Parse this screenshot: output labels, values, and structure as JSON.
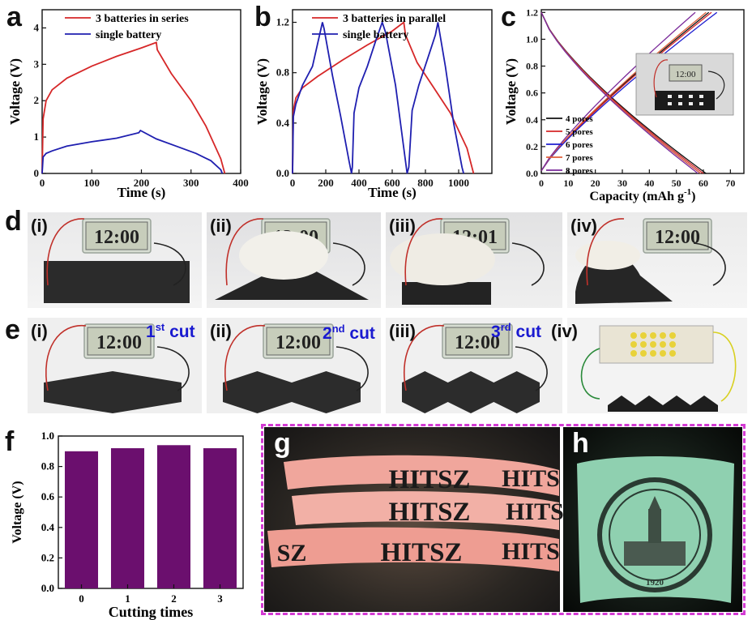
{
  "panels": {
    "a": "a",
    "b": "b",
    "c": "c",
    "d": "d",
    "e": "e",
    "f": "f",
    "g": "g",
    "h": "h"
  },
  "colors": {
    "red": "#d62728",
    "blue": "#1f1fb0",
    "bar": "#6b0f6e",
    "magenta": "#d33bd3"
  },
  "chart_data": [
    {
      "id": "a",
      "type": "line",
      "xlabel": "Time (s)",
      "ylabel": "Voltage (V)",
      "xlim": [
        0,
        400
      ],
      "ylim": [
        0,
        4.5
      ],
      "xticks": [
        0,
        100,
        200,
        300,
        400
      ],
      "yticks": [
        0,
        1,
        2,
        3,
        4
      ],
      "series": [
        {
          "name": "3 batteries in series",
          "color": "#d62728",
          "x": [
            0,
            2,
            8,
            20,
            50,
            100,
            150,
            200,
            230,
            232,
            260,
            300,
            330,
            360,
            368
          ],
          "y": [
            0,
            1.5,
            2.0,
            2.3,
            2.62,
            2.95,
            3.22,
            3.45,
            3.6,
            3.4,
            2.75,
            2.0,
            1.3,
            0.4,
            0
          ]
        },
        {
          "name": "single battery",
          "color": "#1f1fb0",
          "x": [
            0,
            2,
            8,
            20,
            50,
            100,
            150,
            195,
            198,
            230,
            270,
            310,
            340,
            360,
            363
          ],
          "y": [
            0,
            0.45,
            0.55,
            0.62,
            0.75,
            0.87,
            0.97,
            1.12,
            1.18,
            0.95,
            0.75,
            0.55,
            0.35,
            0.1,
            0
          ]
        }
      ]
    },
    {
      "id": "b",
      "type": "line",
      "xlabel": "Time (s)",
      "ylabel": "Voltage (V)",
      "xlim": [
        0,
        1200
      ],
      "ylim": [
        0,
        1.3
      ],
      "xticks": [
        0,
        200,
        400,
        600,
        800,
        1000
      ],
      "yticks": [
        0.0,
        0.4,
        0.8,
        1.2
      ],
      "series": [
        {
          "name": "3 batteries in parallel",
          "color": "#d62728",
          "x": [
            0,
            5,
            20,
            60,
            150,
            300,
            450,
            600,
            670,
            680,
            750,
            850,
            950,
            1050,
            1090
          ],
          "y": [
            0,
            0.5,
            0.6,
            0.68,
            0.77,
            0.9,
            1.02,
            1.13,
            1.2,
            1.1,
            0.88,
            0.68,
            0.48,
            0.2,
            0
          ]
        },
        {
          "name": "single battery",
          "color": "#1f1fb0",
          "x": [
            0,
            5,
            20,
            60,
            120,
            180,
            190,
            240,
            290,
            340,
            355,
            360,
            370,
            400,
            450,
            500,
            540,
            560,
            620,
            670,
            690,
            700,
            720,
            760,
            810,
            860,
            875,
            920,
            970,
            1020,
            1030
          ],
          "y": [
            0,
            0.45,
            0.55,
            0.7,
            0.85,
            1.2,
            1.15,
            0.78,
            0.45,
            0.1,
            0,
            0.05,
            0.48,
            0.68,
            0.85,
            1.05,
            1.2,
            1.12,
            0.7,
            0.2,
            0,
            0.05,
            0.5,
            0.7,
            0.9,
            1.1,
            1.2,
            0.85,
            0.4,
            0.05,
            0
          ]
        }
      ]
    },
    {
      "id": "c",
      "type": "line",
      "xlabel": "Capacity (mAh g",
      "xlabel_sup": "-1",
      "xlabel_close": ")",
      "ylabel": "Voltage (V)",
      "xlim": [
        0,
        75
      ],
      "ylim": [
        0,
        1.22
      ],
      "xticks": [
        0,
        10,
        20,
        30,
        40,
        50,
        60,
        70
      ],
      "yticks": [
        0.0,
        0.2,
        0.4,
        0.6,
        0.8,
        1.0,
        1.2
      ],
      "legend": [
        "4 pores",
        "5 pores",
        "6 pores",
        "7 pores",
        "8 pores"
      ],
      "series": [
        {
          "name": "4 pores",
          "color": "#111111",
          "charge_end": 62,
          "discharge_end": 61
        },
        {
          "name": "5 pores",
          "color": "#d62728",
          "charge_end": 63,
          "discharge_end": 60
        },
        {
          "name": "6 pores",
          "color": "#1f1fd0",
          "charge_end": 65,
          "discharge_end": 59
        },
        {
          "name": "7 pores",
          "color": "#e0603a",
          "charge_end": 61,
          "discharge_end": 59
        },
        {
          "name": "8 pores",
          "color": "#7a2a9a",
          "charge_end": 57,
          "discharge_end": 58
        }
      ]
    },
    {
      "id": "f",
      "type": "bar",
      "xlabel": "Cutting times",
      "ylabel": "Voltage (V)",
      "categories": [
        "0",
        "1",
        "2",
        "3"
      ],
      "values": [
        0.9,
        0.92,
        0.94,
        0.92
      ],
      "ylim": [
        0,
        1.0
      ],
      "yticks": [
        "0.0",
        "0.2",
        "0.4",
        "0.6",
        "0.8",
        "1.0"
      ]
    }
  ],
  "photos": {
    "clock_time": "12:00",
    "clock_time_alt": "12:01",
    "d_labels": [
      "(i)",
      "(ii)",
      "(iii)",
      "(iv)"
    ],
    "e_labels": [
      "(i)",
      "(ii)",
      "(iii)",
      "(iv)"
    ],
    "cuts": [
      {
        "num": "1",
        "sup": "st",
        "word": "cut"
      },
      {
        "num": "2",
        "sup": "nd",
        "word": "cut"
      },
      {
        "num": "3",
        "sup": "rd",
        "word": "cut"
      }
    ],
    "hitsz": "HITSZ",
    "hitsz_partial": "HITS",
    "hitsz_tail": "SZ",
    "year": "1920"
  }
}
